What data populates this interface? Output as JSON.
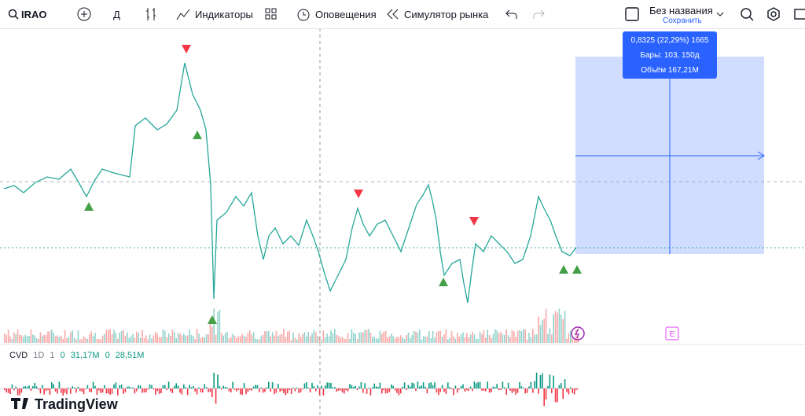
{
  "toolbar": {
    "symbol": "IRAO",
    "interval": "Д",
    "indicators": "Индикаторы",
    "alerts": "Оповещения",
    "replay": "Симулятор рынка",
    "layout_name": "Без названия",
    "save": "Сохранить"
  },
  "tooltip": {
    "line1": "0,8325 (22,29%) 1665",
    "line2": "Бары: 103, 150д",
    "line3": "Объём 167,21M"
  },
  "cvd_legend": {
    "name": "CVD",
    "interval": "1D",
    "param": "1",
    "open_label": "0",
    "value1": "31,17M",
    "close_label": "0",
    "value2": "28,51M"
  },
  "markers": {
    "earnings": "E"
  },
  "footer": {
    "logo": "TradingView"
  }
}
